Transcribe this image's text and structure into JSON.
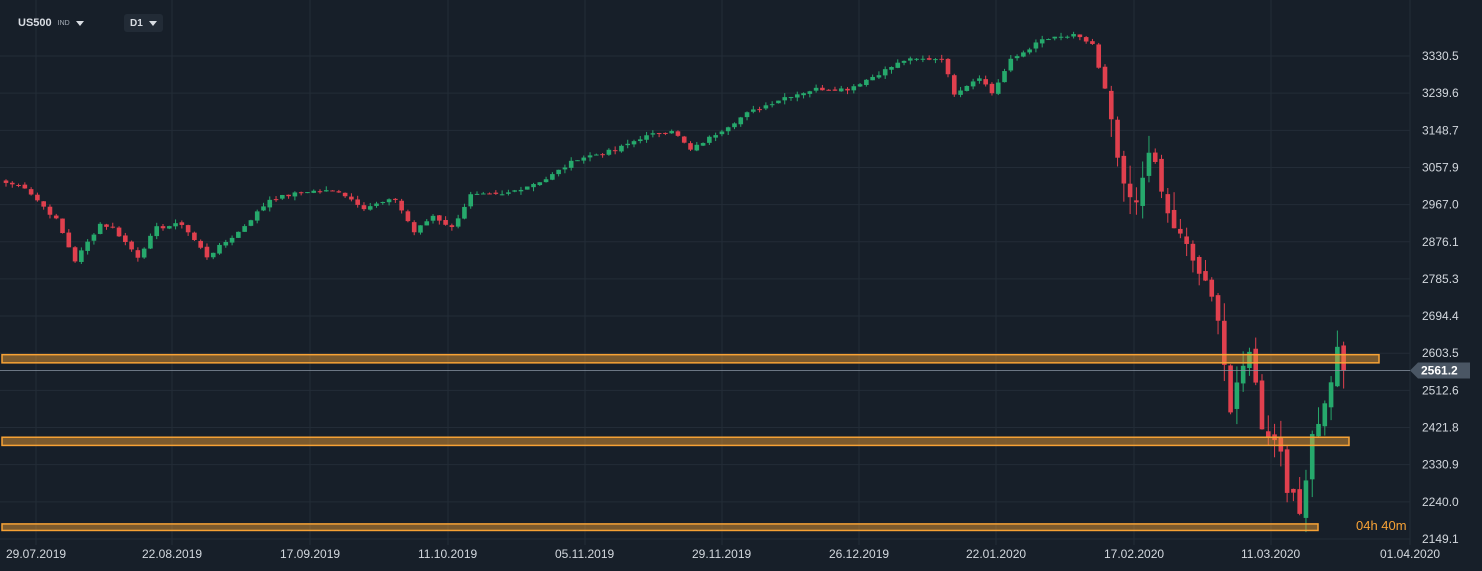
{
  "toolbar": {
    "symbol": "US500",
    "symbol_type": "IND",
    "timeframe": "D1"
  },
  "countdown": "04h 40m",
  "colors": {
    "background": "#171f29",
    "grid": "#232c37",
    "bull": "#26a96c",
    "bear": "#e0404e",
    "zone": "#f7a235",
    "price_label": "#4a5664"
  },
  "chart_data": {
    "type": "candlestick",
    "title": "",
    "xlabel": "",
    "ylabel": "",
    "ylim": [
      2120,
      3410
    ],
    "y_ticks": [
      "3330.5",
      "3239.6",
      "3148.7",
      "3057.9",
      "2967.0",
      "2876.1",
      "2785.3",
      "2694.4",
      "2603.5",
      "2512.6",
      "2421.8",
      "2330.9",
      "2240.0",
      "2149.1"
    ],
    "x_ticks": [
      "29.07.2019",
      "22.08.2019",
      "17.09.2019",
      "11.10.2019",
      "05.11.2019",
      "29.11.2019",
      "26.12.2019",
      "22.01.2020",
      "17.02.2020",
      "11.03.2020",
      "01.04.2020"
    ],
    "current_price": "2561.2",
    "zones": [
      {
        "name": "resistance-zone",
        "price_low": 2580,
        "price_high": 2600
      },
      {
        "name": "support-zone-mid",
        "price_low": 2378,
        "price_high": 2398
      },
      {
        "name": "support-zone-low",
        "price_low": 2170,
        "price_high": 2186
      }
    ],
    "keypoints": [
      [
        0,
        3020
      ],
      [
        3,
        3010
      ],
      [
        8,
        2930
      ],
      [
        11,
        2830
      ],
      [
        15,
        2920
      ],
      [
        17,
        2910
      ],
      [
        21,
        2840
      ],
      [
        24,
        2910
      ],
      [
        28,
        2920
      ],
      [
        32,
        2840
      ],
      [
        37,
        2900
      ],
      [
        42,
        2980
      ],
      [
        48,
        3000
      ],
      [
        53,
        3000
      ],
      [
        57,
        2960
      ],
      [
        62,
        2980
      ],
      [
        65,
        2900
      ],
      [
        68,
        2940
      ],
      [
        71,
        2910
      ],
      [
        74,
        2990
      ],
      [
        79,
        2990
      ],
      [
        86,
        3030
      ],
      [
        91,
        3080
      ],
      [
        97,
        3100
      ],
      [
        101,
        3130
      ],
      [
        106,
        3150
      ],
      [
        109,
        3100
      ],
      [
        114,
        3150
      ],
      [
        118,
        3190
      ],
      [
        124,
        3230
      ],
      [
        129,
        3250
      ],
      [
        134,
        3250
      ],
      [
        138,
        3280
      ],
      [
        143,
        3320
      ],
      [
        149,
        3325
      ],
      [
        151,
        3240
      ],
      [
        155,
        3280
      ],
      [
        157,
        3240
      ],
      [
        160,
        3320
      ],
      [
        165,
        3370
      ],
      [
        170,
        3380
      ],
      [
        173,
        3360
      ],
      [
        175,
        3240
      ],
      [
        178,
        3000
      ],
      [
        180,
        2960
      ],
      [
        182,
        3110
      ],
      [
        185,
        2940
      ],
      [
        188,
        2860
      ],
      [
        190,
        2800
      ],
      [
        193,
        2700
      ],
      [
        195,
        2460
      ],
      [
        198,
        2620
      ],
      [
        200,
        2430
      ],
      [
        203,
        2370
      ],
      [
        204,
        2280
      ],
      [
        206,
        2210
      ],
      [
        208,
        2410
      ],
      [
        210,
        2475
      ],
      [
        212,
        2610
      ],
      [
        213,
        2561.2
      ]
    ]
  }
}
